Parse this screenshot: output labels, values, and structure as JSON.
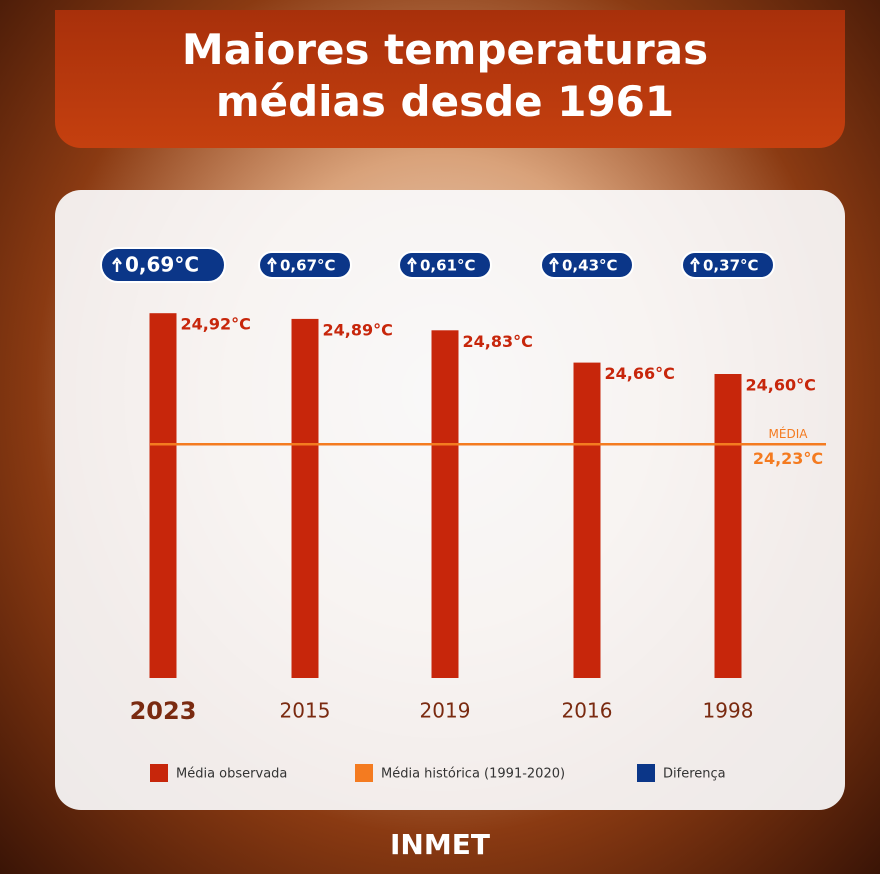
{
  "chart_data": {
    "type": "bar",
    "title": "Maiores temperaturas médias desde 1961",
    "categories": [
      "2023",
      "2015",
      "2019",
      "2016",
      "1998"
    ],
    "series": [
      {
        "name": "Média observada",
        "color": "#c7260b",
        "values": [
          24.92,
          24.89,
          24.83,
          24.66,
          24.6
        ],
        "value_labels": [
          "24,92°C",
          "24,89°C",
          "24,83°C",
          "24,66°C",
          "24,60°C"
        ]
      },
      {
        "name": "Diferença",
        "color": "#0b3688",
        "values": [
          0.69,
          0.67,
          0.61,
          0.43,
          0.37
        ],
        "value_labels": [
          "0,69°C",
          "0,67°C",
          "0,61°C",
          "0,43°C",
          "0,37°C"
        ]
      }
    ],
    "reference_line": {
      "name": "Média histórica (1991-2020)",
      "color": "#f47b20",
      "value": 24.23,
      "value_label": "24,23°C",
      "label": "MÉDIA"
    },
    "ylim": [
      23,
      25
    ],
    "source": "INMET"
  }
}
